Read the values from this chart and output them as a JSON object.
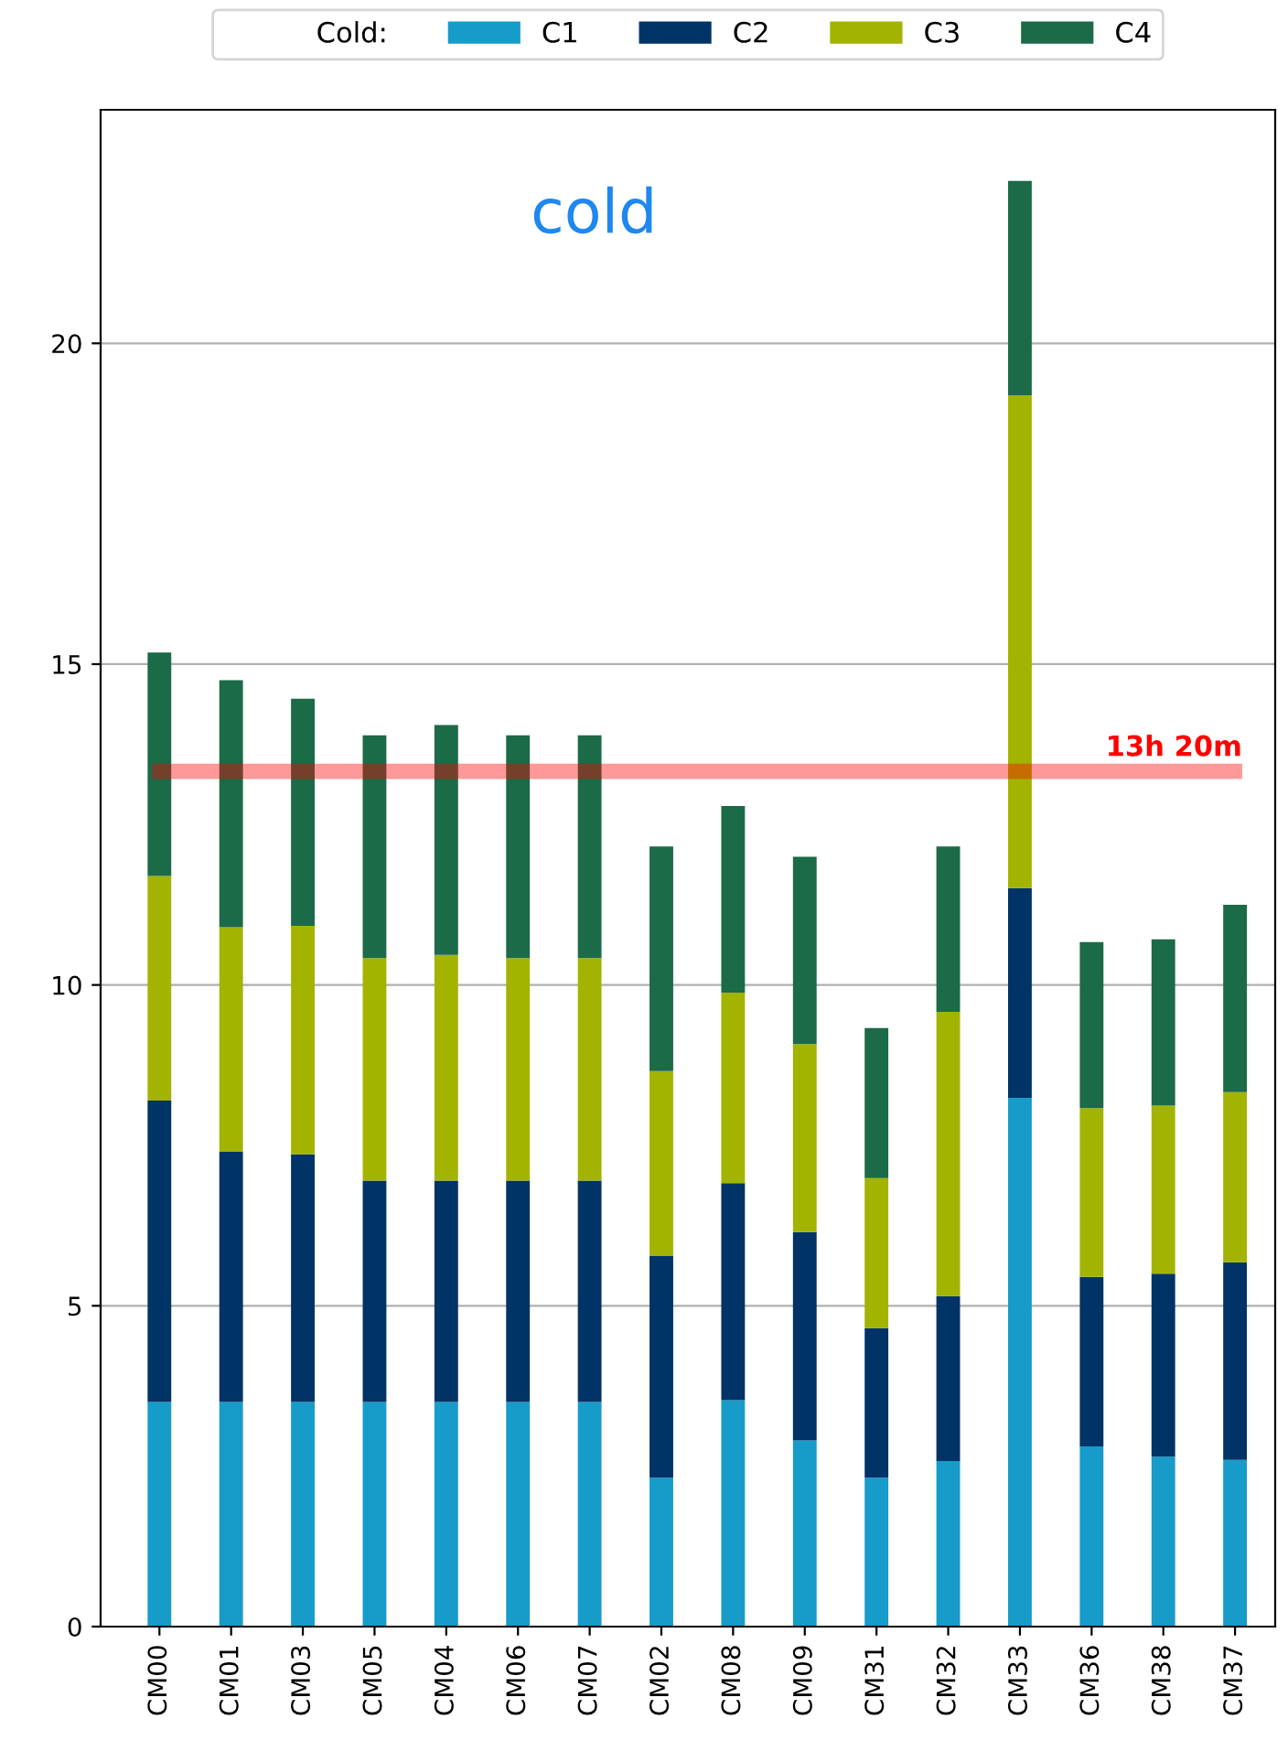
{
  "chart_data": {
    "type": "bar",
    "stacked": true,
    "title": "cold",
    "legend_title": "Cold:",
    "legend": "top",
    "categories": [
      "CM00",
      "CM01",
      "CM03",
      "CM05",
      "CM04",
      "CM06",
      "CM07",
      "CM02",
      "CM08",
      "CM09",
      "CM31",
      "CM32",
      "CM33",
      "CM36",
      "CM38",
      "CM37"
    ],
    "series": [
      {
        "name": "C1",
        "color": "#179bc9",
        "values": [
          3.5,
          3.5,
          3.5,
          3.5,
          3.5,
          3.5,
          3.5,
          2.32,
          3.53,
          2.9,
          2.32,
          2.58,
          8.24,
          2.81,
          2.65,
          2.6
        ]
      },
      {
        "name": "C2",
        "color": "#003366",
        "values": [
          4.7,
          3.9,
          3.86,
          3.45,
          3.45,
          3.45,
          3.45,
          3.46,
          3.38,
          3.25,
          2.33,
          2.57,
          3.27,
          2.64,
          2.85,
          3.08
        ]
      },
      {
        "name": "C3",
        "color": "#a2b400",
        "values": [
          3.5,
          3.5,
          3.56,
          3.47,
          3.52,
          3.47,
          3.47,
          2.88,
          2.97,
          2.93,
          2.34,
          4.43,
          7.68,
          2.63,
          2.62,
          2.65
        ]
      },
      {
        "name": "C4",
        "color": "#1b6a48",
        "values": [
          3.48,
          3.85,
          3.54,
          3.47,
          3.58,
          3.47,
          3.47,
          3.5,
          2.91,
          2.92,
          2.34,
          2.58,
          3.34,
          2.59,
          2.59,
          2.92
        ]
      }
    ],
    "ylim": [
      0,
      23.64
    ],
    "yticks": [
      0,
      5,
      10,
      15,
      20
    ],
    "grid": "y",
    "ref_lines": [
      {
        "axis": "y",
        "value": 13.33,
        "label": "13h 20m",
        "color": "#ff0000"
      }
    ]
  }
}
